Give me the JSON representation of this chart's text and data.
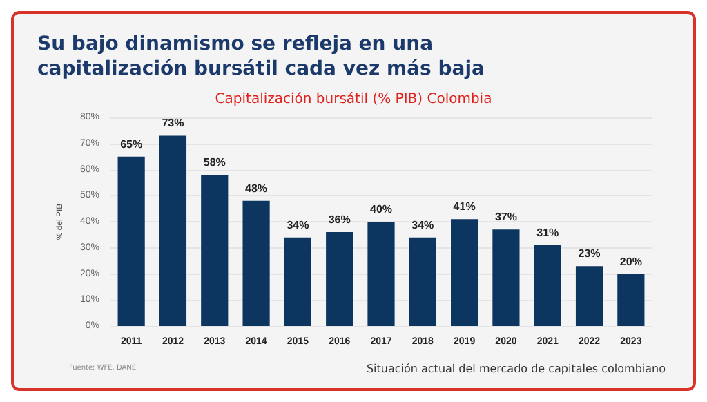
{
  "chart_data": {
    "type": "bar",
    "title": "Su bajo dinamismo se refleja en una capitalización bursátil cada vez más baja",
    "subtitle": "Capitalización bursátil (% PIB) Colombia",
    "ylabel": "% del PIB",
    "categories": [
      "2011",
      "2012",
      "2013",
      "2014",
      "2015",
      "2016",
      "2017",
      "2018",
      "2019",
      "2020",
      "2021",
      "2022",
      "2023"
    ],
    "values": [
      65,
      73,
      58,
      48,
      34,
      36,
      40,
      34,
      41,
      37,
      31,
      23,
      20
    ],
    "value_labels": [
      "65%",
      "73%",
      "58%",
      "48%",
      "34%",
      "36%",
      "40%",
      "34%",
      "41%",
      "37%",
      "31%",
      "23%",
      "20%"
    ],
    "color": "#0c3560",
    "ylim": [
      0,
      80
    ],
    "yticks": [
      {
        "value": 0,
        "label": "0%"
      },
      {
        "value": 10,
        "label": "10%"
      },
      {
        "value": 20,
        "label": "20%"
      },
      {
        "value": 30,
        "label": "30%"
      },
      {
        "value": 40,
        "label": "40%"
      },
      {
        "value": 50,
        "label": "50%"
      },
      {
        "value": 60,
        "label": "60%"
      },
      {
        "value": 70,
        "label": "70%"
      },
      {
        "value": 80,
        "label": "80%"
      }
    ],
    "grid": "y",
    "annotations": [
      "Fuente: WFE, DANE",
      "Situación actual del mercado de capitales colombiano"
    ]
  }
}
